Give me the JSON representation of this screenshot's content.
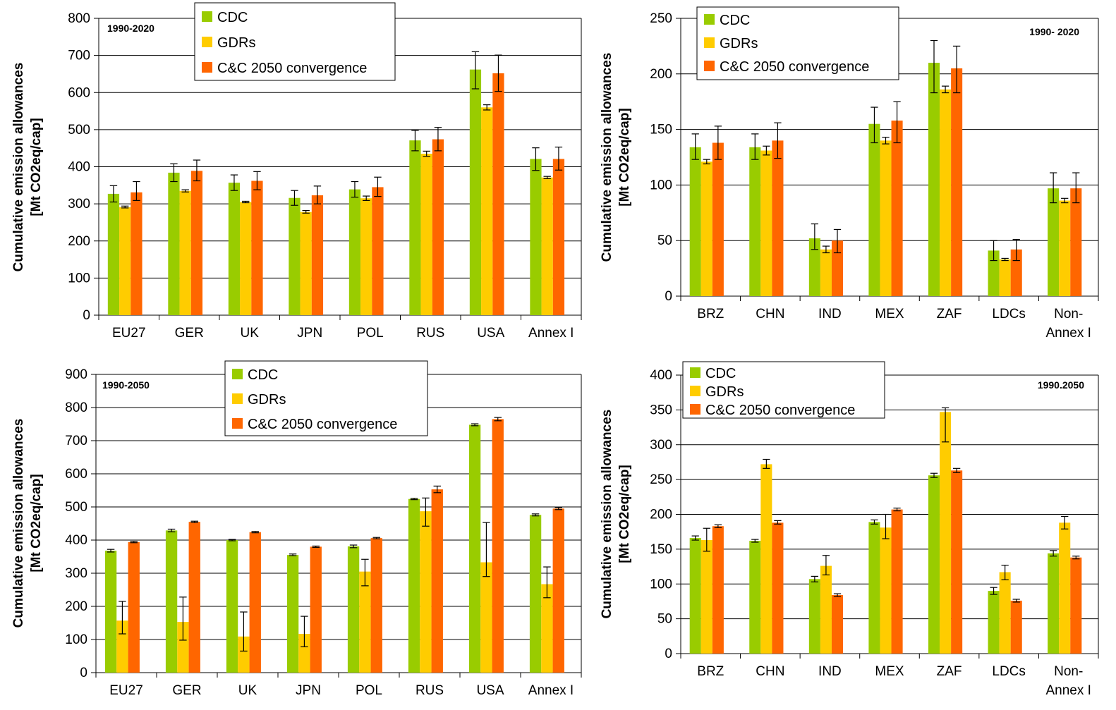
{
  "colors": {
    "series": [
      "#99cc00",
      "#ffcc00",
      "#ff6600"
    ],
    "grid": "#000000",
    "errorbar": "#000000"
  },
  "chart_data": [
    {
      "type": "bar",
      "title": "",
      "annotation": "1990-2020",
      "ylabel_lines": [
        "Cumulative emission allowances",
        "[Mt CO2eq/cap]"
      ],
      "xlabel": "",
      "categories": [
        "EU27",
        "GER",
        "UK",
        "JPN",
        "POL",
        "RUS",
        "USA",
        "Annex I"
      ],
      "ylim": [
        0,
        800
      ],
      "yticks": [
        0,
        100,
        200,
        300,
        400,
        500,
        600,
        700,
        800
      ],
      "grid": true,
      "legend": "top-center",
      "series": [
        {
          "name": "CDC",
          "values": [
            327,
            384,
            357,
            316,
            339,
            471,
            662,
            421
          ],
          "error": [
            [
              305,
              349
            ],
            [
              360,
              408
            ],
            [
              336,
              378
            ],
            [
              296,
              336
            ],
            [
              318,
              360
            ],
            [
              443,
              498
            ],
            [
              610,
              710
            ],
            [
              390,
              451
            ]
          ]
        },
        {
          "name": "GDRs",
          "values": [
            291,
            335,
            305,
            278,
            315,
            435,
            560,
            371
          ],
          "error": [
            [
              289,
              294
            ],
            [
              332,
              338
            ],
            [
              303,
              307
            ],
            [
              275,
              282
            ],
            [
              309,
              321
            ],
            [
              428,
              442
            ],
            [
              553,
              567
            ],
            [
              368,
              374
            ]
          ]
        },
        {
          "name": "C&C 2050 convergence",
          "values": [
            331,
            389,
            362,
            323,
            345,
            474,
            652,
            421
          ],
          "error": [
            [
              309,
              360
            ],
            [
              362,
              418
            ],
            [
              338,
              387
            ],
            [
              300,
              348
            ],
            [
              320,
              372
            ],
            [
              443,
              506
            ],
            [
              603,
              701
            ],
            [
              391,
              453
            ]
          ]
        }
      ]
    },
    {
      "type": "bar",
      "title": "",
      "annotation": "1990- 2020",
      "ylabel_lines": [
        "Cumulative emission allowances",
        "[Mt CO2eq/cap]"
      ],
      "xlabel": "",
      "categories": [
        [
          "BRZ"
        ],
        [
          "CHN"
        ],
        [
          "IND"
        ],
        [
          "MEX"
        ],
        [
          "ZAF"
        ],
        [
          "LDCs"
        ],
        [
          "Non-",
          "Annex I"
        ]
      ],
      "ylim": [
        0,
        250
      ],
      "yticks": [
        0,
        50,
        100,
        150,
        200,
        250
      ],
      "grid": true,
      "legend": "top-center",
      "series": [
        {
          "name": "CDC",
          "values": [
            134,
            134,
            52,
            155,
            210,
            41,
            97
          ],
          "error": [
            [
              123,
              146
            ],
            [
              123,
              146
            ],
            [
              42,
              65
            ],
            [
              138,
              170
            ],
            [
              183,
              230
            ],
            [
              32,
              50
            ],
            [
              84,
              111
            ]
          ]
        },
        {
          "name": "GDRs",
          "values": [
            121,
            131,
            42,
            140,
            186,
            33,
            86
          ],
          "error": [
            [
              119,
              123
            ],
            [
              127,
              135
            ],
            [
              39,
              45
            ],
            [
              137,
              143
            ],
            [
              183,
              189
            ],
            [
              32,
              34
            ],
            [
              84,
              88
            ]
          ]
        },
        {
          "name": "C&C 2050 convergence",
          "values": [
            138,
            140,
            50,
            158,
            205,
            42,
            97
          ],
          "error": [
            [
              123,
              153
            ],
            [
              124,
              156
            ],
            [
              39,
              60
            ],
            [
              138,
              175
            ],
            [
              183,
              225
            ],
            [
              32,
              51
            ],
            [
              84,
              111
            ]
          ]
        }
      ]
    },
    {
      "type": "bar",
      "title": "",
      "annotation": "1990-2050",
      "ylabel_lines": [
        "Cumulative emission allowances",
        "[Mt CO2eq/cap]"
      ],
      "xlabel": "",
      "categories": [
        "EU27",
        "GER",
        "UK",
        "JPN",
        "POL",
        "RUS",
        "USA",
        "Annex I"
      ],
      "ylim": [
        0,
        900
      ],
      "yticks": [
        0,
        100,
        200,
        300,
        400,
        500,
        600,
        700,
        800,
        900
      ],
      "grid": true,
      "legend": "top-center",
      "series": [
        {
          "name": "CDC",
          "values": [
            368,
            429,
            400,
            355,
            381,
            524,
            748,
            476
          ],
          "error": [
            [
              364,
              372
            ],
            [
              425,
              433
            ],
            [
              398,
              402
            ],
            [
              353,
              358
            ],
            [
              377,
              385
            ],
            [
              522,
              526
            ],
            [
              745,
              751
            ],
            [
              473,
              479
            ]
          ]
        },
        {
          "name": "GDRs",
          "values": [
            157,
            153,
            109,
            117,
            305,
            487,
            333,
            267
          ],
          "error": [
            [
              117,
              215
            ],
            [
              98,
              228
            ],
            [
              65,
              183
            ],
            [
              78,
              170
            ],
            [
              262,
              342
            ],
            [
              442,
              527
            ],
            [
              290,
              453
            ],
            [
              226,
              319
            ]
          ]
        },
        {
          "name": "C&C 2050 convergence",
          "values": [
            394,
            455,
            424,
            380,
            406,
            553,
            765,
            495
          ],
          "error": [
            [
              392,
              396
            ],
            [
              453,
              457
            ],
            [
              422,
              426
            ],
            [
              378,
              382
            ],
            [
              404,
              408
            ],
            [
              543,
              563
            ],
            [
              760,
              770
            ],
            [
              492,
              498
            ]
          ]
        }
      ]
    },
    {
      "type": "bar",
      "title": "",
      "annotation": "1990.2050",
      "ylabel_lines": [
        "Cumulative emission allowances",
        "[Mt CO2eq/cap]"
      ],
      "xlabel": "",
      "categories": [
        [
          "BRZ"
        ],
        [
          "CHN"
        ],
        [
          "IND"
        ],
        [
          "MEX"
        ],
        [
          "ZAF"
        ],
        [
          "LDCs"
        ],
        [
          "Non-",
          "Annex I"
        ]
      ],
      "ylim": [
        0,
        400
      ],
      "yticks": [
        0,
        50,
        100,
        150,
        200,
        250,
        300,
        350,
        400
      ],
      "grid": true,
      "legend": "top-left",
      "series": [
        {
          "name": "CDC",
          "values": [
            166,
            162,
            107,
            189,
            256,
            90,
            144
          ],
          "error": [
            [
              163,
              169
            ],
            [
              160,
              164
            ],
            [
              103,
              111
            ],
            [
              186,
              192
            ],
            [
              253,
              259
            ],
            [
              85,
              95
            ],
            [
              140,
              148
            ]
          ]
        },
        {
          "name": "GDRs",
          "values": [
            163,
            272,
            126,
            181,
            347,
            117,
            188
          ],
          "error": [
            [
              147,
              180
            ],
            [
              266,
              279
            ],
            [
              113,
              141
            ],
            [
              165,
              200
            ],
            [
              304,
              353
            ],
            [
              106,
              127
            ],
            [
              179,
              197
            ]
          ]
        },
        {
          "name": "C&C 2050 convergence",
          "values": [
            183,
            188,
            84,
            207,
            263,
            76,
            138
          ],
          "error": [
            [
              181,
              185
            ],
            [
              186,
              191
            ],
            [
              82,
              86
            ],
            [
              205,
              209
            ],
            [
              260,
              266
            ],
            [
              74,
              78
            ],
            [
              136,
              140
            ]
          ]
        }
      ]
    }
  ]
}
